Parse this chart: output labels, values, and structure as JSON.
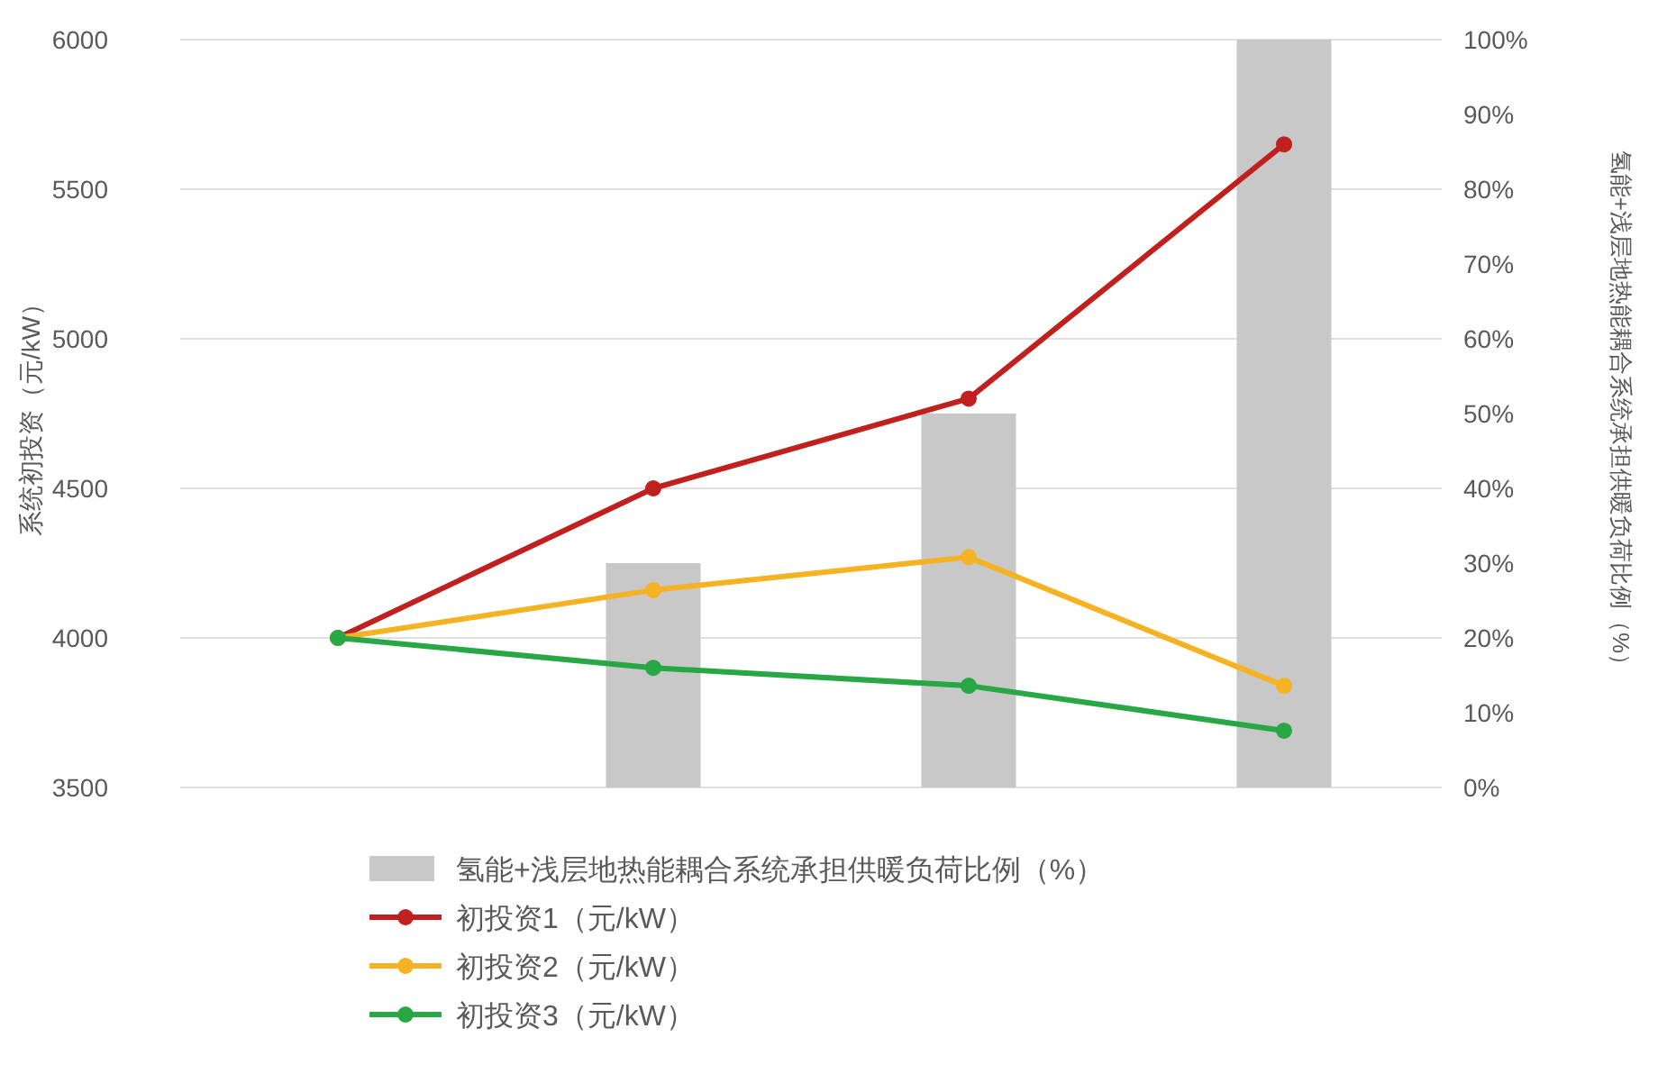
{
  "chart_data": {
    "type": "line",
    "categories": [
      null,
      null,
      null,
      null
    ],
    "ylabel": "系统初投资（元/kW）",
    "y2label": "氢能+浅层地热能耦合系统承担供暖负荷比例（%）",
    "ylim": [
      3500,
      6000
    ],
    "yticks": [
      3500,
      4000,
      4500,
      5000,
      5500,
      6000
    ],
    "y2lim": [
      0,
      100
    ],
    "y2ticks": [
      {
        "value": 0,
        "label": "0%"
      },
      {
        "value": 10,
        "label": "10%"
      },
      {
        "value": 20,
        "label": "20%"
      },
      {
        "value": 30,
        "label": "30%"
      },
      {
        "value": 40,
        "label": "40%"
      },
      {
        "value": 50,
        "label": "50%"
      },
      {
        "value": 60,
        "label": "60%"
      },
      {
        "value": 70,
        "label": "70%"
      },
      {
        "value": 80,
        "label": "80%"
      },
      {
        "value": 90,
        "label": "90%"
      },
      {
        "value": 100,
        "label": "100%"
      }
    ],
    "grid": "y",
    "legend": "bottom",
    "marker": "circle",
    "series": [
      {
        "name": "氢能+浅层地热能耦合系统承担供暖负荷比例（%）",
        "type": "bar",
        "axis": "y2",
        "color": "#c8c8c8",
        "values": [
          0,
          30,
          50,
          100
        ]
      },
      {
        "name": "初投资1（元/kW）",
        "color": "#c0201e",
        "values": [
          4000,
          4500,
          4800,
          5650
        ]
      },
      {
        "name": "初投资2（元/kW）",
        "color": "#f5b323",
        "values": [
          4000,
          4160,
          4270,
          3840
        ]
      },
      {
        "name": "初投资3（元/kW）",
        "color": "#28a745",
        "values": [
          4000,
          3900,
          3840,
          3690
        ]
      }
    ]
  }
}
